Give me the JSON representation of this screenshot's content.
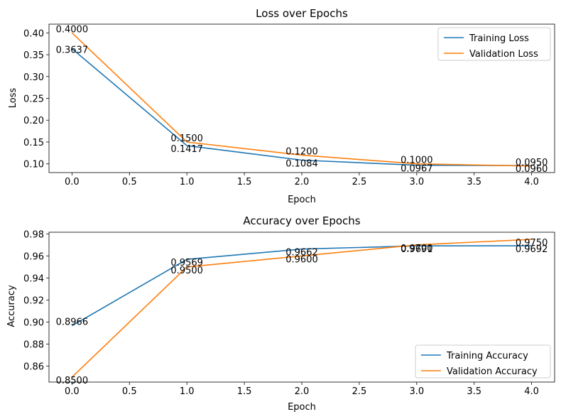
{
  "chart_data": [
    {
      "type": "line",
      "title": "Loss over Epochs",
      "xlabel": "Epoch",
      "ylabel": "Loss",
      "xlim": [
        -0.2,
        4.2
      ],
      "ylim": [
        0.08,
        0.42
      ],
      "xticks": [
        0.0,
        0.5,
        1.0,
        1.5,
        2.0,
        2.5,
        3.0,
        3.5,
        4.0
      ],
      "xtick_labels": [
        "0.0",
        "0.5",
        "1.0",
        "1.5",
        "2.0",
        "2.5",
        "3.0",
        "3.5",
        "4.0"
      ],
      "yticks": [
        0.1,
        0.15,
        0.2,
        0.25,
        0.3,
        0.35,
        0.4
      ],
      "ytick_labels": [
        "0.10",
        "0.15",
        "0.20",
        "0.25",
        "0.30",
        "0.35",
        "0.40"
      ],
      "grid": false,
      "legend_position": "top-right",
      "x": [
        0,
        1,
        2,
        3,
        4
      ],
      "series": [
        {
          "name": "Training Loss",
          "color": "#1f77b4",
          "values": [
            0.3637,
            0.1417,
            0.1084,
            0.0967,
            0.096
          ],
          "labels": [
            "0.3637",
            "0.1417",
            "0.1084",
            "0.0967",
            "0.0960"
          ]
        },
        {
          "name": "Validation Loss",
          "color": "#ff7f0e",
          "values": [
            0.4,
            0.15,
            0.12,
            0.1,
            0.095
          ],
          "labels": [
            "0.4000",
            "0.1500",
            "0.1200",
            "0.1000",
            "0.0950"
          ]
        }
      ]
    },
    {
      "type": "line",
      "title": "Accuracy over Epochs",
      "xlabel": "Epoch",
      "ylabel": "Accuracy",
      "xlim": [
        -0.2,
        4.2
      ],
      "ylim": [
        0.8455,
        0.9815
      ],
      "xticks": [
        0.0,
        0.5,
        1.0,
        1.5,
        2.0,
        2.5,
        3.0,
        3.5,
        4.0
      ],
      "xtick_labels": [
        "0.0",
        "0.5",
        "1.0",
        "1.5",
        "2.0",
        "2.5",
        "3.0",
        "3.5",
        "4.0"
      ],
      "yticks": [
        0.86,
        0.88,
        0.9,
        0.92,
        0.94,
        0.96,
        0.98
      ],
      "ytick_labels": [
        "0.86",
        "0.88",
        "0.90",
        "0.92",
        "0.94",
        "0.96",
        "0.98"
      ],
      "grid": false,
      "legend_position": "bottom-right",
      "x": [
        0,
        1,
        2,
        3,
        4
      ],
      "series": [
        {
          "name": "Training Accuracy",
          "color": "#1f77b4",
          "values": [
            0.8966,
            0.9569,
            0.9662,
            0.9691,
            0.9692
          ],
          "labels": [
            "0.8966",
            "0.9569",
            "0.9662",
            "0.9691",
            "0.9692"
          ]
        },
        {
          "name": "Validation Accuracy",
          "color": "#ff7f0e",
          "values": [
            0.85,
            0.95,
            0.96,
            0.97,
            0.975
          ],
          "labels": [
            "0.8500",
            "0.9500",
            "0.9600",
            "0.9700",
            "0.9750"
          ]
        }
      ]
    }
  ]
}
